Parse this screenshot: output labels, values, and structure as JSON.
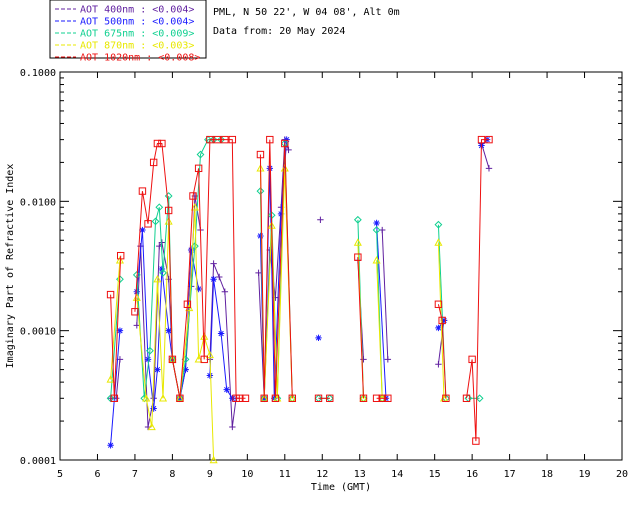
{
  "header": {
    "site": "PML, N 50 22', W 04 08', Alt 0m",
    "date": "Data from: 20 May 2024"
  },
  "legend": [
    {
      "label": "AOT  400nm : <0.004>",
      "color": "#6020a0"
    },
    {
      "label": "AOT  500nm : <0.004>",
      "color": "#1a1aff"
    },
    {
      "label": "AOT  675nm : <0.009>",
      "color": "#10d090"
    },
    {
      "label": "AOT  870nm : <0.003>",
      "color": "#e8e800"
    },
    {
      "label": "AOT 1020nm : <0.008>",
      "color": "#ee1010"
    }
  ],
  "chart_data": {
    "type": "line",
    "xlabel": "Time (GMT)",
    "ylabel": "Imaginary Part of Refractive Index",
    "xlim": [
      5,
      20
    ],
    "ylim": [
      0.0001,
      0.1
    ],
    "yscale": "log",
    "xticks": [
      "5",
      "6",
      "7",
      "8",
      "9",
      "10",
      "11",
      "12",
      "13",
      "14",
      "15",
      "16",
      "17",
      "18",
      "19",
      "20"
    ],
    "yticks": [
      "0.0001",
      "0.0010",
      "0.0100",
      "0.1000"
    ],
    "grid": false,
    "legend_position": "top-left, outside plot",
    "series": [
      {
        "name": "AOT  400nm : <0.004>",
        "color": "#6020a0",
        "marker": "plus",
        "segments": [
          [
            [
              6.35,
              0.0003
            ],
            [
              6.5,
              0.0003
            ],
            [
              6.6,
              0.0006
            ]
          ],
          [
            [
              7.05,
              0.0011
            ],
            [
              7.15,
              0.0045
            ],
            [
              7.35,
              0.00018
            ],
            [
              7.5,
              0.0003
            ],
            [
              7.65,
              0.0045
            ],
            [
              7.72,
              0.0048
            ],
            [
              7.9,
              0.0025
            ],
            [
              8.0,
              0.0006
            ],
            [
              8.2,
              0.0003
            ],
            [
              8.35,
              0.0005
            ],
            [
              8.5,
              0.0022
            ],
            [
              8.6,
              0.011
            ],
            [
              8.75,
              0.006
            ]
          ],
          [
            [
              9.0,
              0.0006
            ],
            [
              9.1,
              0.0033
            ],
            [
              9.25,
              0.0026
            ],
            [
              9.4,
              0.002
            ],
            [
              9.6,
              0.00018
            ],
            [
              9.7,
              0.0003
            ]
          ],
          [
            [
              10.3,
              0.0028
            ],
            [
              10.45,
              0.0003
            ],
            [
              10.6,
              0.0042
            ],
            [
              10.75,
              0.0018
            ],
            [
              10.9,
              0.009
            ],
            [
              11.0,
              0.03
            ],
            [
              11.1,
              0.025
            ]
          ],
          [
            [
              11.95,
              0.0072
            ]
          ],
          [
            [
              12.95,
              0.0035
            ],
            [
              13.1,
              0.0006
            ]
          ],
          [
            [
              13.6,
              0.006
            ],
            [
              13.75,
              0.0006
            ]
          ],
          [
            [
              15.1,
              0.00055
            ],
            [
              15.25,
              0.0012
            ]
          ],
          [
            [
              16.25,
              0.028
            ],
            [
              16.45,
              0.018
            ]
          ]
        ]
      },
      {
        "name": "AOT  500nm : <0.004>",
        "color": "#1a1aff",
        "marker": "asterisk",
        "segments": [
          [
            [
              6.35,
              0.00013
            ],
            [
              6.6,
              0.001
            ]
          ],
          [
            [
              7.05,
              0.002
            ],
            [
              7.2,
              0.006
            ],
            [
              7.35,
              0.0006
            ],
            [
              7.5,
              0.00025
            ],
            [
              7.6,
              0.0005
            ],
            [
              7.72,
              0.003
            ],
            [
              7.9,
              0.001
            ],
            [
              8.0,
              0.0006
            ],
            [
              8.2,
              0.0003
            ],
            [
              8.35,
              0.0005
            ],
            [
              8.5,
              0.0042
            ],
            [
              8.7,
              0.0021
            ]
          ],
          [
            [
              9.0,
              0.00045
            ],
            [
              9.1,
              0.0025
            ],
            [
              9.3,
              0.00095
            ],
            [
              9.45,
              0.00035
            ],
            [
              9.6,
              0.0003
            ]
          ],
          [
            [
              10.35,
              0.0054
            ],
            [
              10.45,
              0.0003
            ],
            [
              10.6,
              0.018
            ],
            [
              10.72,
              0.0003
            ],
            [
              10.9,
              0.008
            ],
            [
              11.05,
              0.03
            ]
          ],
          [
            [
              11.9,
              0.00088
            ]
          ],
          [
            [
              13.45,
              0.0068
            ],
            [
              13.7,
              0.0003
            ]
          ],
          [
            [
              15.1,
              0.00105
            ],
            [
              15.25,
              0.0012
            ]
          ],
          [
            [
              16.25,
              0.027
            ],
            [
              16.4,
              0.03
            ]
          ]
        ]
      },
      {
        "name": "AOT  675nm : <0.009>",
        "color": "#10d090",
        "marker": "diamond",
        "segments": [
          [
            [
              6.35,
              0.0003
            ],
            [
              6.6,
              0.0025
            ]
          ],
          [
            [
              7.05,
              0.0027
            ],
            [
              7.25,
              0.0003
            ],
            [
              7.4,
              0.0007
            ],
            [
              7.55,
              0.007
            ],
            [
              7.65,
              0.009
            ],
            [
              7.75,
              0.0028
            ],
            [
              7.9,
              0.011
            ],
            [
              8.0,
              0.0006
            ],
            [
              8.2,
              0.0003
            ],
            [
              8.35,
              0.0006
            ],
            [
              8.6,
              0.0045
            ],
            [
              8.75,
              0.023
            ],
            [
              8.95,
              0.03
            ],
            [
              9.1,
              0.03
            ],
            [
              9.3,
              0.03
            ]
          ],
          [
            [
              10.35,
              0.012
            ],
            [
              10.45,
              0.0003
            ],
            [
              10.65,
              0.0078
            ],
            [
              10.8,
              0.0003
            ],
            [
              11.0,
              0.028
            ],
            [
              11.2,
              0.0003
            ]
          ],
          [
            [
              11.9,
              0.0003
            ],
            [
              12.2,
              0.0003
            ]
          ],
          [
            [
              12.95,
              0.0072
            ],
            [
              13.1,
              0.0003
            ]
          ],
          [
            [
              13.45,
              0.006
            ],
            [
              13.6,
              0.0003
            ]
          ],
          [
            [
              15.1,
              0.0066
            ],
            [
              15.3,
              0.0003
            ]
          ],
          [
            [
              15.9,
              0.0003
            ],
            [
              16.2,
              0.0003
            ]
          ]
        ]
      },
      {
        "name": "AOT  870nm : <0.003>",
        "color": "#e8e800",
        "marker": "triangle",
        "segments": [
          [
            [
              6.35,
              0.00042
            ],
            [
              6.6,
              0.0035
            ]
          ],
          [
            [
              7.05,
              0.0018
            ],
            [
              7.3,
              0.0003
            ],
            [
              7.45,
              0.00018
            ],
            [
              7.6,
              0.0025
            ],
            [
              7.75,
              0.0003
            ],
            [
              7.9,
              0.007
            ],
            [
              8.0,
              0.0006
            ],
            [
              8.2,
              0.0003
            ],
            [
              8.45,
              0.0015
            ],
            [
              8.6,
              0.009
            ],
            [
              8.7,
              0.0006
            ],
            [
              8.85,
              0.0009
            ],
            [
              9.0,
              0.00065
            ],
            [
              9.1,
              0.0001
            ]
          ],
          [
            [
              10.35,
              0.018
            ],
            [
              10.45,
              0.0003
            ],
            [
              10.65,
              0.0065
            ],
            [
              10.8,
              0.0003
            ],
            [
              11.0,
              0.018
            ],
            [
              11.2,
              0.0003
            ]
          ],
          [
            [
              12.95,
              0.0048
            ],
            [
              13.1,
              0.0003
            ]
          ],
          [
            [
              13.45,
              0.0035
            ],
            [
              13.6,
              0.0003
            ]
          ],
          [
            [
              15.1,
              0.0048
            ],
            [
              15.25,
              0.0003
            ]
          ]
        ]
      },
      {
        "name": "AOT 1020nm : <0.008>",
        "color": "#ee1010",
        "marker": "square",
        "segments": [
          [
            [
              6.35,
              0.0019
            ],
            [
              6.45,
              0.0003
            ],
            [
              6.62,
              0.0038
            ]
          ],
          [
            [
              7.0,
              0.0014
            ],
            [
              7.2,
              0.012
            ],
            [
              7.35,
              0.0067
            ],
            [
              7.5,
              0.02
            ],
            [
              7.6,
              0.028
            ],
            [
              7.72,
              0.028
            ],
            [
              7.9,
              0.0085
            ],
            [
              8.0,
              0.0006
            ],
            [
              8.2,
              0.0003
            ],
            [
              8.4,
              0.0016
            ],
            [
              8.55,
              0.011
            ],
            [
              8.7,
              0.018
            ],
            [
              8.85,
              0.0006
            ],
            [
              9.0,
              0.03
            ],
            [
              9.2,
              0.03
            ],
            [
              9.4,
              0.03
            ],
            [
              9.6,
              0.03
            ],
            [
              9.7,
              0.0003
            ],
            [
              9.8,
              0.0003
            ],
            [
              9.95,
              0.0003
            ]
          ],
          [
            [
              10.35,
              0.023
            ],
            [
              10.45,
              0.0003
            ],
            [
              10.6,
              0.03
            ],
            [
              10.75,
              0.0003
            ],
            [
              11.0,
              0.028
            ],
            [
              11.2,
              0.0003
            ]
          ],
          [
            [
              11.9,
              0.0003
            ],
            [
              12.2,
              0.0003
            ]
          ],
          [
            [
              12.95,
              0.0037
            ],
            [
              13.1,
              0.0003
            ]
          ],
          [
            [
              13.45,
              0.0003
            ],
            [
              13.6,
              0.0003
            ],
            [
              13.75,
              0.0003
            ]
          ],
          [
            [
              15.1,
              0.0016
            ],
            [
              15.2,
              0.0012
            ],
            [
              15.3,
              0.0003
            ]
          ],
          [
            [
              15.85,
              0.0003
            ],
            [
              16.0,
              0.0006
            ],
            [
              16.1,
              0.00014
            ],
            [
              16.25,
              0.03
            ],
            [
              16.45,
              0.03
            ]
          ]
        ]
      }
    ]
  }
}
